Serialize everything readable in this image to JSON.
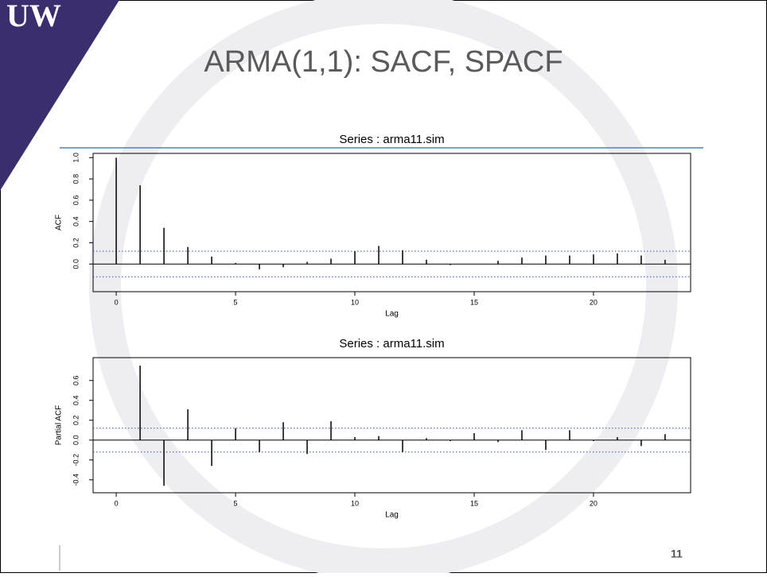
{
  "slide": {
    "logo": "UW",
    "title": "ARMA(1,1): SACF, SPACF",
    "page_number": "11"
  },
  "chart_data": [
    {
      "type": "stem",
      "title": "Series : arma11.sim",
      "x_label": "Lag",
      "y_label": "ACF",
      "x": [
        0,
        1,
        2,
        3,
        4,
        5,
        6,
        7,
        8,
        9,
        10,
        11,
        12,
        13,
        14,
        15,
        16,
        17,
        18,
        19,
        20,
        21,
        22,
        23
      ],
      "values": [
        1.0,
        0.74,
        0.34,
        0.16,
        0.07,
        0.01,
        -0.05,
        -0.03,
        0.02,
        0.05,
        0.12,
        0.17,
        0.13,
        0.04,
        -0.01,
        0.0,
        0.03,
        0.06,
        0.08,
        0.08,
        0.09,
        0.1,
        0.08,
        0.04
      ],
      "color": "#000000",
      "conf_bands": [
        -0.12,
        0.12
      ],
      "band_color": "#3a4fa8",
      "xlim": [
        -0.97,
        24.07
      ],
      "ylim": [
        -0.26,
        1.04
      ],
      "xticks": [
        0,
        5,
        10,
        15,
        20
      ],
      "yticks": [
        {
          "value": 0,
          "label": "0.0"
        },
        0.2,
        0.4,
        0.6,
        0.8,
        {
          "value": 1,
          "label": "1.0"
        }
      ]
    },
    {
      "type": "stem",
      "title": "Series : arma11.sim",
      "x_label": "Lag",
      "y_label": "Partial ACF",
      "x": [
        1,
        2,
        3,
        4,
        5,
        6,
        7,
        8,
        9,
        10,
        11,
        12,
        13,
        14,
        15,
        16,
        17,
        18,
        19,
        20,
        21,
        22,
        23
      ],
      "values": [
        0.75,
        -0.46,
        0.31,
        -0.26,
        0.12,
        -0.12,
        0.18,
        -0.14,
        0.19,
        0.03,
        0.04,
        -0.12,
        0.02,
        -0.01,
        0.07,
        -0.02,
        0.1,
        -0.1,
        0.1,
        -0.01,
        0.03,
        -0.06,
        0.06
      ],
      "color": "#000000",
      "conf_bands": [
        -0.12,
        0.12
      ],
      "band_color": "#3a4fa8",
      "xlim": [
        -0.97,
        24.07
      ],
      "ylim": [
        -0.53,
        0.83
      ],
      "xticks": [
        0,
        5,
        10,
        15,
        20
      ],
      "yticks": [
        -0.4,
        -0.2,
        {
          "value": 0,
          "label": "0.0"
        },
        0.2,
        0.4,
        0.6
      ]
    }
  ]
}
